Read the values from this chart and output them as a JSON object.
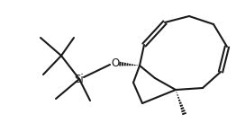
{
  "bg_color": "#ffffff",
  "line_color": "#1a1a1a",
  "line_width": 1.5,
  "fig_width": 2.62,
  "fig_height": 1.47,
  "dpi": 100
}
